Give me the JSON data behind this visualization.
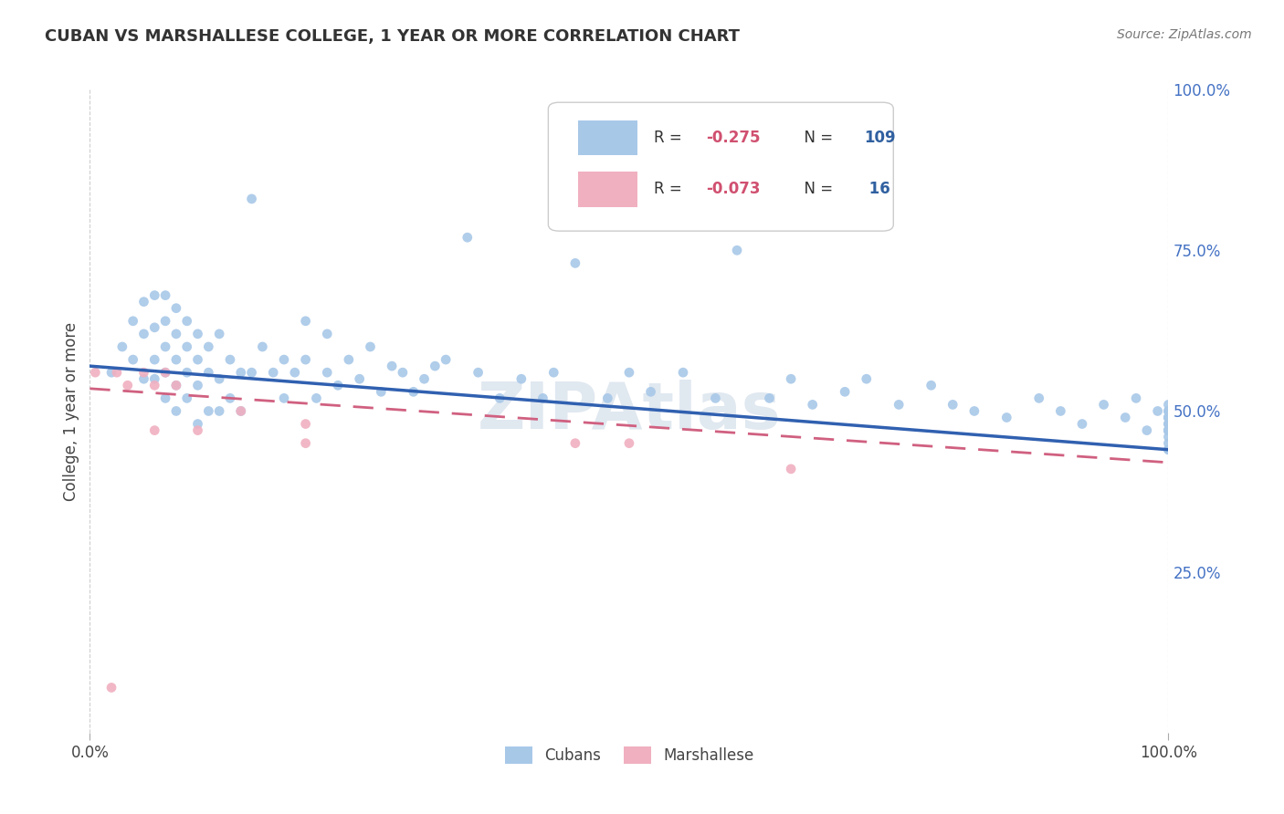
{
  "title": "CUBAN VS MARSHALLESE COLLEGE, 1 YEAR OR MORE CORRELATION CHART",
  "source": "Source: ZipAtlas.com",
  "ylabel": "College, 1 year or more",
  "xlim": [
    0.0,
    1.0
  ],
  "ylim": [
    0.0,
    1.0
  ],
  "background_color": "#ffffff",
  "grid_color": "#c8c8c8",
  "watermark": "ZIPAtlas",
  "watermark_color": "#e0e8f0",
  "cuban_color": "#a8c8e8",
  "cuban_line_color": "#3060b0",
  "marsh_color": "#f0b0c0",
  "marsh_line_color": "#d06080",
  "right_tick_color": "#4472c4",
  "legend_R_color": "#d05070",
  "legend_N_color": "#3060a0",
  "cubans_x": [
    0.02,
    0.03,
    0.04,
    0.04,
    0.05,
    0.05,
    0.05,
    0.06,
    0.06,
    0.06,
    0.06,
    0.07,
    0.07,
    0.07,
    0.07,
    0.07,
    0.08,
    0.08,
    0.08,
    0.08,
    0.08,
    0.09,
    0.09,
    0.09,
    0.09,
    0.1,
    0.1,
    0.1,
    0.1,
    0.11,
    0.11,
    0.11,
    0.12,
    0.12,
    0.12,
    0.13,
    0.13,
    0.14,
    0.14,
    0.15,
    0.15,
    0.16,
    0.17,
    0.18,
    0.18,
    0.19,
    0.2,
    0.2,
    0.21,
    0.22,
    0.22,
    0.23,
    0.24,
    0.25,
    0.26,
    0.27,
    0.28,
    0.29,
    0.3,
    0.31,
    0.32,
    0.33,
    0.35,
    0.36,
    0.38,
    0.4,
    0.42,
    0.43,
    0.45,
    0.48,
    0.5,
    0.52,
    0.55,
    0.58,
    0.6,
    0.63,
    0.65,
    0.67,
    0.7,
    0.72,
    0.75,
    0.78,
    0.8,
    0.82,
    0.85,
    0.88,
    0.9,
    0.92,
    0.94,
    0.96,
    0.97,
    0.98,
    0.99,
    1.0,
    1.0,
    1.0,
    1.0,
    1.0,
    1.0,
    1.0,
    1.0,
    1.0,
    1.0,
    1.0,
    1.0,
    1.0,
    1.0,
    1.0,
    1.0
  ],
  "cubans_y": [
    0.56,
    0.6,
    0.58,
    0.64,
    0.55,
    0.62,
    0.67,
    0.55,
    0.58,
    0.63,
    0.68,
    0.52,
    0.56,
    0.6,
    0.64,
    0.68,
    0.5,
    0.54,
    0.58,
    0.62,
    0.66,
    0.52,
    0.56,
    0.6,
    0.64,
    0.48,
    0.54,
    0.58,
    0.62,
    0.5,
    0.56,
    0.6,
    0.5,
    0.55,
    0.62,
    0.52,
    0.58,
    0.5,
    0.56,
    0.83,
    0.56,
    0.6,
    0.56,
    0.52,
    0.58,
    0.56,
    0.58,
    0.64,
    0.52,
    0.56,
    0.62,
    0.54,
    0.58,
    0.55,
    0.6,
    0.53,
    0.57,
    0.56,
    0.53,
    0.55,
    0.57,
    0.58,
    0.77,
    0.56,
    0.52,
    0.55,
    0.52,
    0.56,
    0.73,
    0.52,
    0.56,
    0.53,
    0.56,
    0.52,
    0.75,
    0.52,
    0.55,
    0.51,
    0.53,
    0.55,
    0.51,
    0.54,
    0.51,
    0.5,
    0.49,
    0.52,
    0.5,
    0.48,
    0.51,
    0.49,
    0.52,
    0.47,
    0.5,
    0.49,
    0.47,
    0.51,
    0.48,
    0.5,
    0.47,
    0.45,
    0.49,
    0.47,
    0.44,
    0.5,
    0.48,
    0.46,
    0.44,
    0.49,
    0.47
  ],
  "marshallese_x": [
    0.005,
    0.02,
    0.025,
    0.035,
    0.05,
    0.06,
    0.06,
    0.07,
    0.08,
    0.1,
    0.14,
    0.2,
    0.2,
    0.45,
    0.5,
    0.65
  ],
  "marshallese_y": [
    0.56,
    0.07,
    0.56,
    0.54,
    0.56,
    0.54,
    0.47,
    0.56,
    0.54,
    0.47,
    0.5,
    0.48,
    0.45,
    0.45,
    0.45,
    0.41
  ],
  "cuban_trend": [
    0.57,
    0.44
  ],
  "marsh_trend": [
    0.535,
    0.42
  ],
  "right_yticks": [
    0.25,
    0.5,
    0.75,
    1.0
  ],
  "right_yticklabels": [
    "25.0%",
    "50.0%",
    "75.0%",
    "100.0%"
  ]
}
